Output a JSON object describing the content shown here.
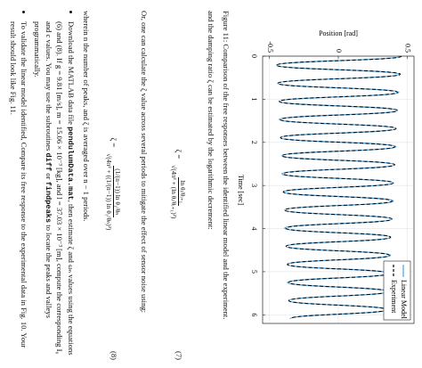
{
  "chart_data": {
    "type": "line",
    "ylabel": "Position [rad]",
    "xlabel": "Time [sec]",
    "x": [
      0,
      0.21,
      0.42,
      0.63,
      0.84,
      1.05,
      1.26,
      1.47,
      1.68,
      1.89,
      2.1,
      2.31,
      2.52,
      2.73,
      2.94,
      3.15,
      3.36,
      3.57,
      3.78,
      3.99,
      4.2,
      4.41,
      4.62,
      4.83,
      5.04,
      5.25,
      5.46,
      5.67,
      5.88,
      6.09
    ],
    "series": [
      {
        "name": "Linear Model",
        "color": "#4aa3df",
        "dash": false,
        "values": [
          0.45,
          -0.45,
          0.44,
          -0.44,
          0.44,
          -0.43,
          0.43,
          -0.43,
          0.42,
          -0.42,
          0.42,
          -0.41,
          0.41,
          -0.41,
          0.4,
          -0.4,
          0.4,
          -0.39,
          0.39,
          -0.39,
          0.38,
          -0.38,
          0.38,
          -0.37,
          0.37,
          -0.37,
          0.36,
          -0.36,
          0.36,
          -0.35
        ]
      },
      {
        "name": "Experiment",
        "color": "#000000",
        "dash": true,
        "values": [
          0.46,
          -0.45,
          0.45,
          -0.44,
          0.43,
          -0.43,
          0.43,
          -0.42,
          0.42,
          -0.42,
          0.41,
          -0.41,
          0.41,
          -0.4,
          0.4,
          -0.4,
          0.39,
          -0.39,
          0.39,
          -0.38,
          0.38,
          -0.38,
          0.37,
          -0.37,
          0.37,
          -0.36,
          0.36,
          -0.36,
          0.35,
          -0.35
        ]
      }
    ],
    "xlim": [
      0,
      6.2
    ],
    "ylim": [
      -0.55,
      0.55
    ],
    "xticks": [
      0,
      1,
      2,
      3,
      4,
      5,
      6
    ],
    "yticks": [
      -0.5,
      0,
      0.5
    ],
    "grid": true,
    "legend": "upper right"
  },
  "caption": "Figure 11: Comparison of the free responses between the identified linear model and the experiment.",
  "para1": "and the damping ratio ζ can be estimated by the logarithmic decrement:",
  "eq7": {
    "lhs": "ζ =",
    "num": "ln θᵢ/θᵢ₊₁",
    "den": "√(4π² + (ln θᵢ/θᵢ₊₁)²)",
    "number": "(7)"
  },
  "para2": "Or, one can calculate the ζ value across several periods to mitigate the effect of sensor noise using:",
  "eq8": {
    "lhs": "ζ =",
    "num": "(1/(n−1)) ln θ₁/θₙ",
    "den": "√(4π² + ((1/(n−1)) ln θ₁/θₙ)²)",
    "number": "(8)"
  },
  "para3": "wherein n the number of peaks, and ζ is averaged over n − 1 periods.",
  "bullets": [
    [
      "Download the MATLAB data file ",
      "pendulumData.mat",
      ", then estimate ζ and ωₙ values using the equations (6) and (8). If g = 9.81 [m/s], m = 15.06 × 10⁻³ [kg], and l = 37.03 × 10⁻³ [m], compute the corresponding I₀ and c values. You may use the subroutines ",
      "diff",
      " or ",
      "findpeaks",
      " to locate the peaks and valleys programmatically."
    ],
    [
      "To validate the linear model identified, Compare its free response to the experimental data in Fig. 10. Your result should look like Fig. 11."
    ]
  ]
}
